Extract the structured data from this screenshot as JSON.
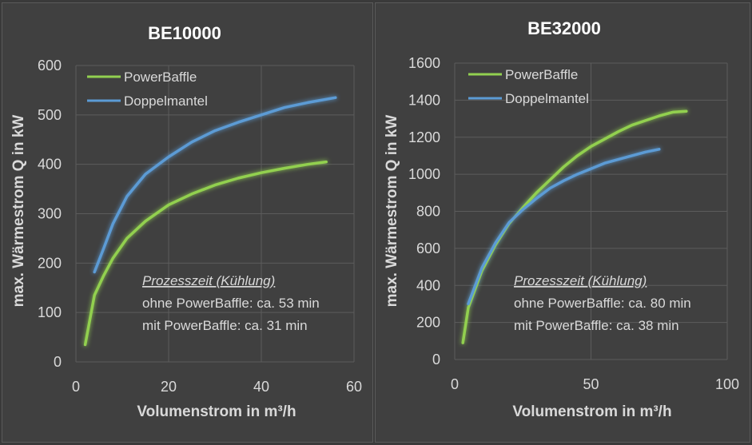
{
  "chart_data": [
    {
      "type": "line",
      "title": "BE10000",
      "xlabel": "Volumenstrom in m³/h",
      "ylabel": "max. Wärmestrom Q in kW",
      "xlim": [
        0,
        60
      ],
      "ylim": [
        0,
        600
      ],
      "xticks": [
        "0",
        "20",
        "40",
        "60"
      ],
      "yticks": [
        "0",
        "100",
        "200",
        "300",
        "400",
        "500",
        "600"
      ],
      "grid": true,
      "legend_position": "top-left",
      "series": [
        {
          "name": "PowerBaffle",
          "color": "#92d050",
          "points": [
            [
              2,
              35
            ],
            [
              4,
              135
            ],
            [
              6,
              175
            ],
            [
              8,
              210
            ],
            [
              11,
              250
            ],
            [
              15,
              285
            ],
            [
              20,
              318
            ],
            [
              25,
              340
            ],
            [
              30,
              358
            ],
            [
              35,
              372
            ],
            [
              40,
              383
            ],
            [
              45,
              392
            ],
            [
              50,
              400
            ],
            [
              54,
              405
            ]
          ]
        },
        {
          "name": "Doppelmantel",
          "color": "#5b9bd5",
          "points": [
            [
              4,
              182
            ],
            [
              6,
              230
            ],
            [
              8,
              280
            ],
            [
              11,
              335
            ],
            [
              15,
              380
            ],
            [
              20,
              415
            ],
            [
              25,
              445
            ],
            [
              30,
              468
            ],
            [
              35,
              485
            ],
            [
              40,
              500
            ],
            [
              45,
              515
            ],
            [
              50,
              525
            ],
            [
              56,
              535
            ]
          ]
        }
      ],
      "annotation": {
        "heading": "Prozesszeit (Kühlung)",
        "lines": [
          "ohne PowerBaffle: ca. 53 min",
          "mit PowerBaffle: ca. 31 min"
        ]
      }
    },
    {
      "type": "line",
      "title": "BE32000",
      "xlabel": "Volumenstrom in m³/h",
      "ylabel": "max. Wärmestrom Q in kW",
      "xlim": [
        0,
        100
      ],
      "ylim": [
        0,
        1600
      ],
      "xticks": [
        "0",
        "50",
        "100"
      ],
      "yticks": [
        "0",
        "200",
        "400",
        "600",
        "800",
        "1000",
        "1200",
        "1400",
        "1600"
      ],
      "grid": true,
      "legend_position": "top-left",
      "series": [
        {
          "name": "PowerBaffle",
          "color": "#92d050",
          "points": [
            [
              3,
              90
            ],
            [
              5,
              280
            ],
            [
              10,
              480
            ],
            [
              15,
              620
            ],
            [
              20,
              735
            ],
            [
              25,
              820
            ],
            [
              30,
              900
            ],
            [
              35,
              970
            ],
            [
              40,
              1040
            ],
            [
              45,
              1100
            ],
            [
              50,
              1150
            ],
            [
              55,
              1190
            ],
            [
              60,
              1230
            ],
            [
              65,
              1265
            ],
            [
              70,
              1290
            ],
            [
              75,
              1315
            ],
            [
              80,
              1335
            ],
            [
              85,
              1340
            ]
          ]
        },
        {
          "name": "Doppelmantel",
          "color": "#5b9bd5",
          "points": [
            [
              5,
              300
            ],
            [
              10,
              495
            ],
            [
              15,
              630
            ],
            [
              20,
              740
            ],
            [
              25,
              810
            ],
            [
              30,
              870
            ],
            [
              35,
              925
            ],
            [
              40,
              965
            ],
            [
              45,
              1000
            ],
            [
              50,
              1030
            ],
            [
              55,
              1060
            ],
            [
              60,
              1080
            ],
            [
              65,
              1100
            ],
            [
              70,
              1120
            ],
            [
              75,
              1135
            ]
          ]
        }
      ],
      "annotation": {
        "heading": "Prozesszeit (Kühlung)",
        "lines": [
          "ohne PowerBaffle: ca. 80 min",
          "mit PowerBaffle: ca. 38 min"
        ]
      }
    }
  ]
}
